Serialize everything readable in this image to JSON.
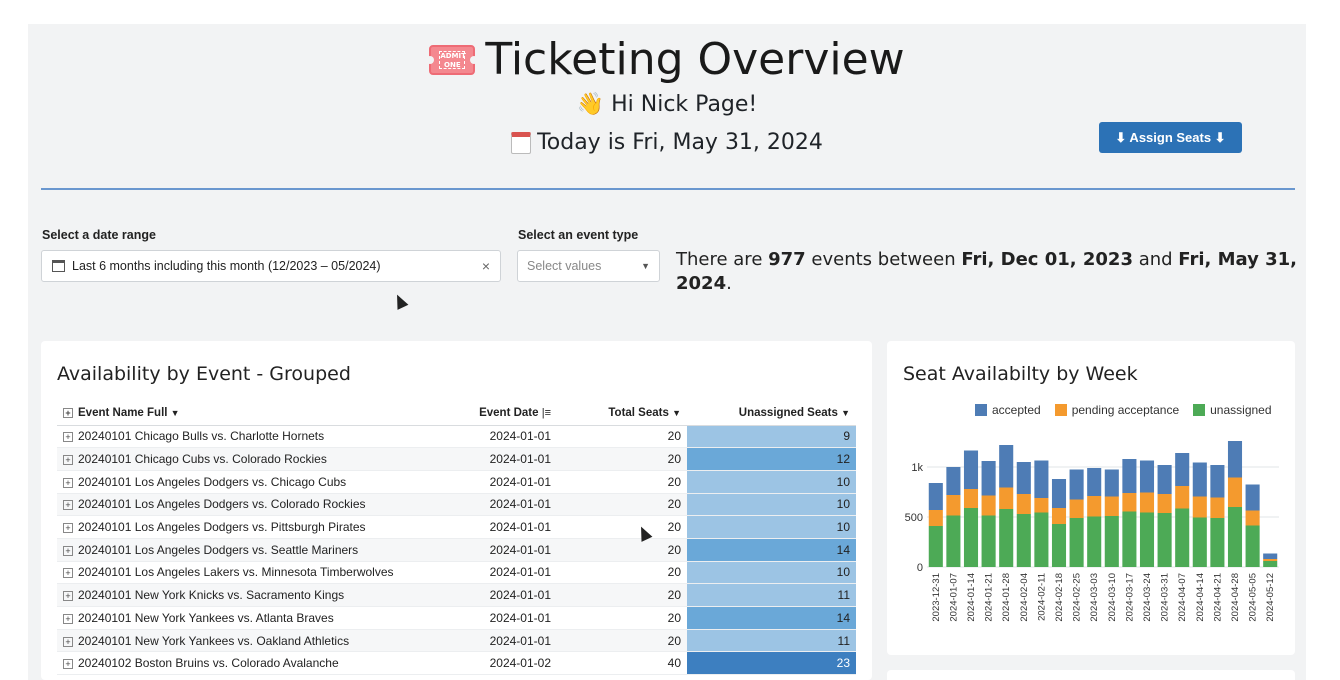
{
  "header": {
    "title": "Ticketing Overview",
    "ticket_icon_text": "ADMIT ONE",
    "greeting": "👋 Hi Nick Page!",
    "today": "Today is Fri, May 31, 2024",
    "assign_button": "⬇ Assign Seats ⬇"
  },
  "filters": {
    "date_label": "Select a date range",
    "date_value": "Last 6 months including this month (12/2023 – 05/2024)",
    "clear_icon": "×",
    "type_label": "Select an event type",
    "type_placeholder": "Select values"
  },
  "summary": {
    "pre": "There are ",
    "count": "977",
    "mid": " events between ",
    "start": "Fri, Dec 01, 2023",
    "and": " and ",
    "end": "Fri, May 31, 2024",
    "post": "."
  },
  "table_panel": {
    "title": "Availability by Event - Grouped",
    "columns": [
      "Event Name Full",
      "Event Date",
      "Total Seats",
      "Unassigned Seats"
    ],
    "rows": [
      {
        "name": "20240101 Chicago Bulls vs. Charlotte Hornets",
        "date": "2024-01-01",
        "total": "20",
        "unassigned": "9"
      },
      {
        "name": "20240101 Chicago Cubs vs. Colorado Rockies",
        "date": "2024-01-01",
        "total": "20",
        "unassigned": "12"
      },
      {
        "name": "20240101 Los Angeles Dodgers vs. Chicago Cubs",
        "date": "2024-01-01",
        "total": "20",
        "unassigned": "10"
      },
      {
        "name": "20240101 Los Angeles Dodgers vs. Colorado Rockies",
        "date": "2024-01-01",
        "total": "20",
        "unassigned": "10"
      },
      {
        "name": "20240101 Los Angeles Dodgers vs. Pittsburgh Pirates",
        "date": "2024-01-01",
        "total": "20",
        "unassigned": "10"
      },
      {
        "name": "20240101 Los Angeles Dodgers vs. Seattle Mariners",
        "date": "2024-01-01",
        "total": "20",
        "unassigned": "14"
      },
      {
        "name": "20240101 Los Angeles Lakers vs. Minnesota Timberwolves",
        "date": "2024-01-01",
        "total": "20",
        "unassigned": "10"
      },
      {
        "name": "20240101 New York Knicks vs. Sacramento Kings",
        "date": "2024-01-01",
        "total": "20",
        "unassigned": "11"
      },
      {
        "name": "20240101 New York Yankees vs. Atlanta Braves",
        "date": "2024-01-01",
        "total": "20",
        "unassigned": "14"
      },
      {
        "name": "20240101 New York Yankees vs. Oakland Athletics",
        "date": "2024-01-01",
        "total": "20",
        "unassigned": "11"
      },
      {
        "name": "20240102 Boston Bruins vs. Colorado Avalanche",
        "date": "2024-01-02",
        "total": "40",
        "unassigned": "23"
      }
    ],
    "heat_colors": {
      "low": "#9cc4e4",
      "mid": "#6aa8d8",
      "high": "#3d7fc0"
    }
  },
  "chart_panel": {
    "title": "Seat Availabilty by Week"
  },
  "chart_data": {
    "type": "bar",
    "stacked": true,
    "title": "Seat Availabilty by Week",
    "categories": [
      "2023-12-31",
      "2024-01-07",
      "2024-01-14",
      "2024-01-21",
      "2024-01-28",
      "2024-02-04",
      "2024-02-11",
      "2024-02-18",
      "2024-02-25",
      "2024-03-03",
      "2024-03-10",
      "2024-03-17",
      "2024-03-24",
      "2024-03-31",
      "2024-04-07",
      "2024-04-14",
      "2024-04-21",
      "2024-04-28",
      "2024-05-05",
      "2024-05-12"
    ],
    "series": [
      {
        "name": "unassigned",
        "color": "#4daa56",
        "values": [
          410,
          515,
          590,
          515,
          580,
          530,
          545,
          430,
          490,
          505,
          510,
          555,
          545,
          540,
          585,
          495,
          490,
          600,
          415,
          60
        ]
      },
      {
        "name": "pending acceptance",
        "color": "#f49a2e",
        "values": [
          160,
          205,
          190,
          200,
          215,
          200,
          145,
          160,
          185,
          205,
          195,
          185,
          200,
          190,
          225,
          210,
          205,
          295,
          150,
          20
        ]
      },
      {
        "name": "accepted",
        "color": "#4e7cb5",
        "values": [
          270,
          280,
          385,
          345,
          425,
          320,
          375,
          290,
          300,
          280,
          270,
          340,
          320,
          290,
          330,
          340,
          325,
          365,
          260,
          55
        ]
      }
    ],
    "legend_order": [
      "accepted",
      "pending acceptance",
      "unassigned"
    ],
    "yticks": [
      "0",
      "500",
      "1k"
    ],
    "ylim": [
      0,
      1400
    ],
    "legend": "top",
    "grid": true
  }
}
